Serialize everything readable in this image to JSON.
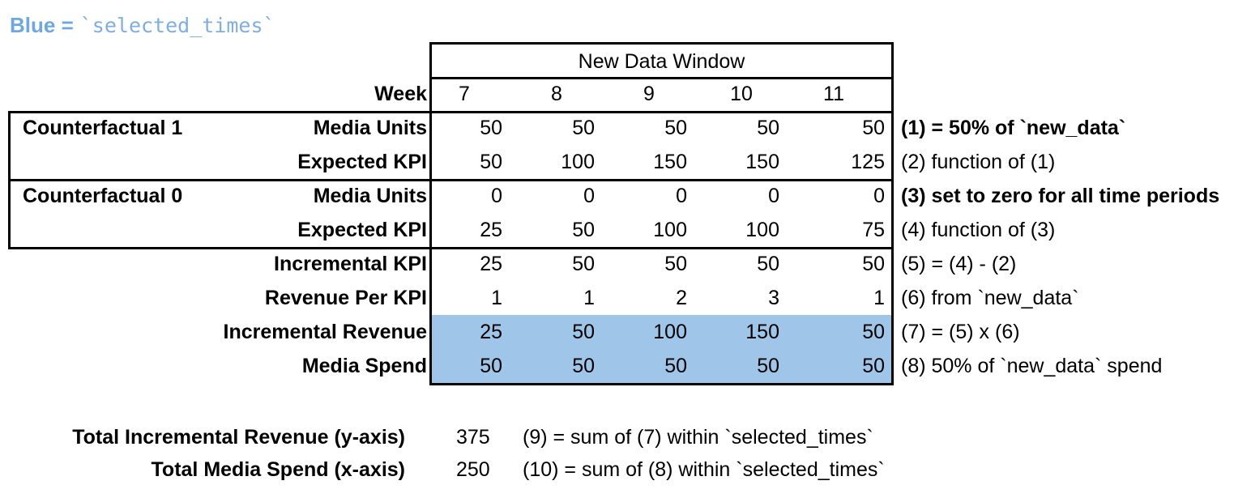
{
  "legend": {
    "prefix": "Blue =",
    "code": "`selected_times`"
  },
  "colors": {
    "highlight_blue": "#9FC5E8",
    "legend_blue": "#6FA8DC",
    "border": "#000000"
  },
  "table": {
    "window_header": "New Data Window",
    "week_label": "Week",
    "weeks": [
      "7",
      "8",
      "9",
      "10",
      "11"
    ],
    "groups": [
      {
        "label": "Counterfactual 1"
      },
      {
        "label": "Counterfactual 0"
      }
    ],
    "rows": [
      {
        "label": "Media Units",
        "values": [
          "50",
          "50",
          "50",
          "50",
          "50"
        ],
        "note": "(1) = 50% of `new_data`"
      },
      {
        "label": "Expected KPI",
        "values": [
          "50",
          "100",
          "150",
          "150",
          "125"
        ],
        "note": "(2) function of (1)"
      },
      {
        "label": "Media Units",
        "values": [
          "0",
          "0",
          "0",
          "0",
          "0"
        ],
        "note": "(3) set to zero for all time periods"
      },
      {
        "label": "Expected KPI",
        "values": [
          "25",
          "50",
          "100",
          "100",
          "75"
        ],
        "note": "(4) function of (3)"
      },
      {
        "label": "Incremental KPI",
        "values": [
          "25",
          "50",
          "50",
          "50",
          "50"
        ],
        "note": "(5) = (4) - (2)"
      },
      {
        "label": "Revenue Per KPI",
        "values": [
          "1",
          "1",
          "2",
          "3",
          "1"
        ],
        "note": "(6) from `new_data`"
      },
      {
        "label": "Incremental Revenue",
        "values": [
          "25",
          "50",
          "100",
          "150",
          "50"
        ],
        "note": "(7) = (5) x (6)"
      },
      {
        "label": "Media Spend",
        "values": [
          "50",
          "50",
          "50",
          "50",
          "50"
        ],
        "note": "(8) 50% of `new_data` spend"
      }
    ]
  },
  "totals": [
    {
      "label": "Total Incremental Revenue (y-axis)",
      "value": "375",
      "note": "(9) = sum of (7) within `selected_times`"
    },
    {
      "label": "Total Media Spend (x-axis)",
      "value": "250",
      "note": "(10) = sum of (8) within `selected_times`"
    }
  ]
}
